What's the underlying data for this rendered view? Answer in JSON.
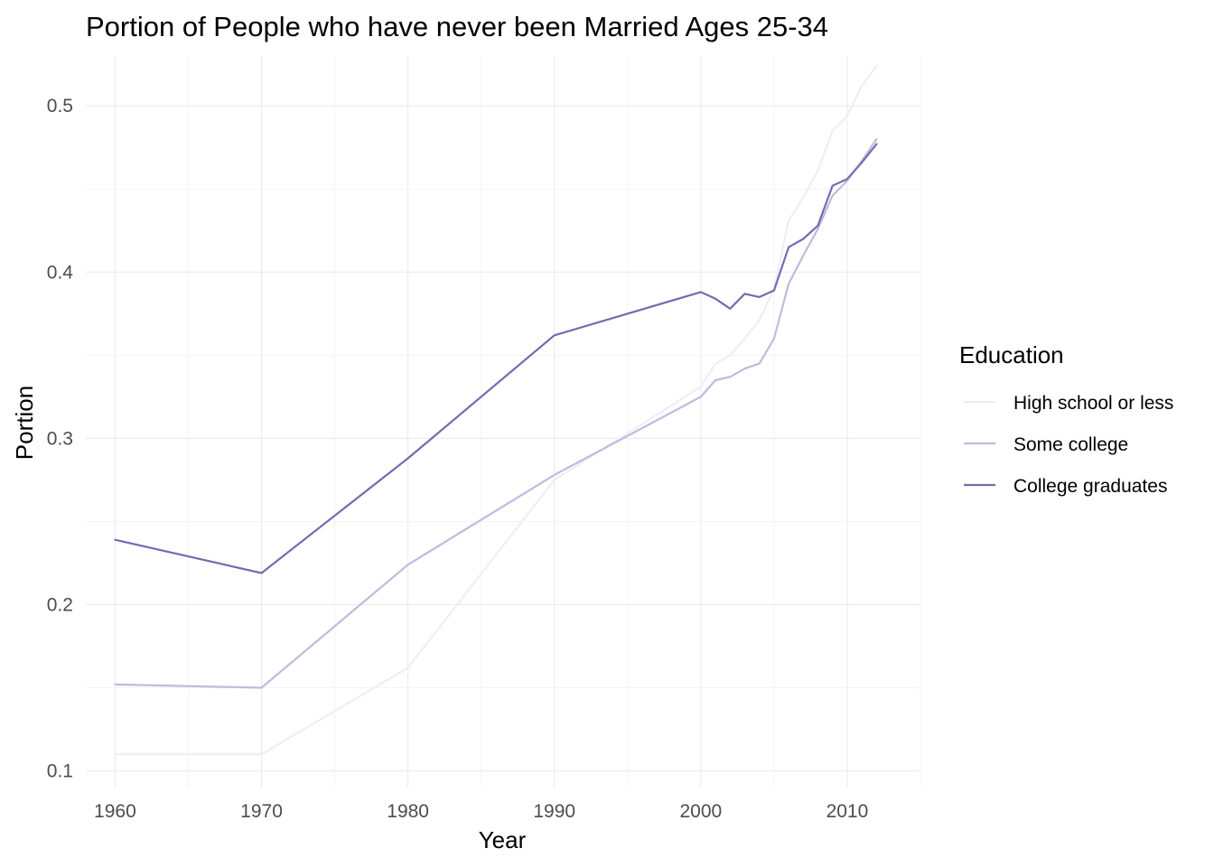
{
  "chart_data": {
    "type": "line",
    "title": "Portion of People who have never been Married Ages 25-34",
    "xlabel": "Year",
    "ylabel": "Portion",
    "xlim": [
      1958,
      2015
    ],
    "ylim": [
      0.09,
      0.53
    ],
    "x_ticks": [
      1960,
      1970,
      1980,
      1990,
      2000,
      2010
    ],
    "x_tick_labels": [
      "1960",
      "1970",
      "1980",
      "1990",
      "2000",
      "2010"
    ],
    "y_ticks": [
      0.1,
      0.2,
      0.3,
      0.4,
      0.5
    ],
    "y_tick_labels": [
      "0.1",
      "0.2",
      "0.3",
      "0.4",
      "0.5"
    ],
    "grid": true,
    "legend": {
      "title": "Education",
      "position": "right"
    },
    "series": [
      {
        "name": "High school or less",
        "color": "#efedf5",
        "x": [
          1960,
          1970,
          1980,
          1990,
          2000,
          2001,
          2002,
          2003,
          2004,
          2005,
          2006,
          2007,
          2008,
          2009,
          2010,
          2011,
          2012
        ],
        "y": [
          0.11,
          0.11,
          0.162,
          0.275,
          0.331,
          0.345,
          0.35,
          0.36,
          0.371,
          0.39,
          0.431,
          0.445,
          0.461,
          0.485,
          0.494,
          0.512,
          0.524
        ]
      },
      {
        "name": "Some college",
        "color": "#bcbddc",
        "x": [
          1960,
          1970,
          1980,
          1990,
          2000,
          2001,
          2002,
          2003,
          2004,
          2005,
          2006,
          2007,
          2008,
          2009,
          2010,
          2011,
          2012
        ],
        "y": [
          0.152,
          0.15,
          0.224,
          0.278,
          0.325,
          0.335,
          0.337,
          0.342,
          0.345,
          0.36,
          0.393,
          0.41,
          0.426,
          0.446,
          0.455,
          0.467,
          0.48
        ]
      },
      {
        "name": "College graduates",
        "color": "#756bb1",
        "x": [
          1960,
          1970,
          1980,
          1990,
          2000,
          2001,
          2002,
          2003,
          2004,
          2005,
          2006,
          2007,
          2008,
          2009,
          2010,
          2011,
          2012
        ],
        "y": [
          0.239,
          0.219,
          0.288,
          0.362,
          0.388,
          0.384,
          0.378,
          0.387,
          0.385,
          0.389,
          0.415,
          0.42,
          0.428,
          0.452,
          0.456,
          0.466,
          0.477
        ]
      }
    ]
  }
}
